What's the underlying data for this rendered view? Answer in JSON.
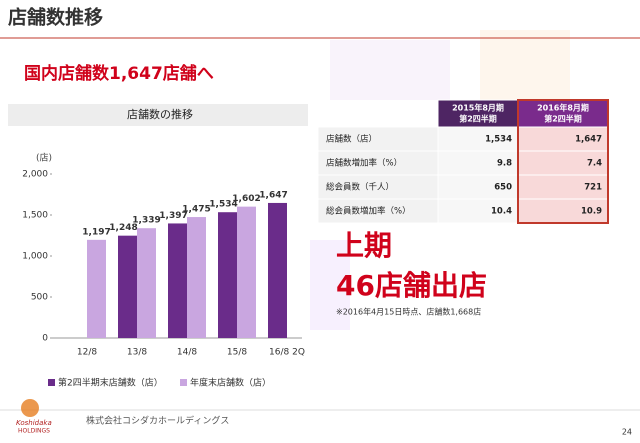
{
  "header": {
    "title": "店舗数推移",
    "subtitle": "国内店舗数1,647店舗へ"
  },
  "chart_data": {
    "type": "bar",
    "title": "店舗数の推移",
    "y_unit": "(店)",
    "categories": [
      "12/8",
      "13/8",
      "14/8",
      "15/8",
      "16/8 2Q"
    ],
    "series": [
      {
        "name": "第2四半期末店舗数（店）",
        "color": "#6a2c8a",
        "values": [
          null,
          1248,
          1397,
          1534,
          1647
        ],
        "value_labels": [
          null,
          "1,248",
          "1,397",
          "1,534",
          "1,647"
        ]
      },
      {
        "name": "年度末店舗数（店）",
        "color": "#c9a6e0",
        "values": [
          1197,
          1339,
          1475,
          1602,
          null
        ],
        "value_labels": [
          "1,197",
          "1,339",
          "1,475",
          "1,602",
          null
        ]
      }
    ],
    "ylim": [
      0,
      2000
    ],
    "yticks": [
      0,
      500,
      {
        "value": 1000,
        "label": "1,000"
      },
      {
        "value": 1500,
        "label": "1,500"
      },
      {
        "value": 2000,
        "label": "2,000"
      }
    ],
    "legend": "bottom"
  },
  "table": {
    "columns": [
      [
        "2015年8月期",
        "第2四半期"
      ],
      [
        "2016年8月期",
        "第2四半期"
      ]
    ],
    "rows": [
      [
        "店舗数（店）",
        "1,534",
        "1,647"
      ],
      [
        "店舗数増加率（%）",
        "9.8",
        "7.4"
      ],
      [
        "総会員数（千人）",
        "650",
        "721"
      ],
      [
        "総会員数増加率（%）",
        "10.4",
        "10.9"
      ]
    ]
  },
  "highlight": {
    "lines": [
      "上期",
      "46店舗出店"
    ],
    "note": "※2016年4月15日時点、店舗数1,668店"
  },
  "footer": {
    "logo": "Koshidaka",
    "logo_sub": "HOLDINGS",
    "company": "株式会社コシダカホールディングス",
    "page": "24"
  }
}
